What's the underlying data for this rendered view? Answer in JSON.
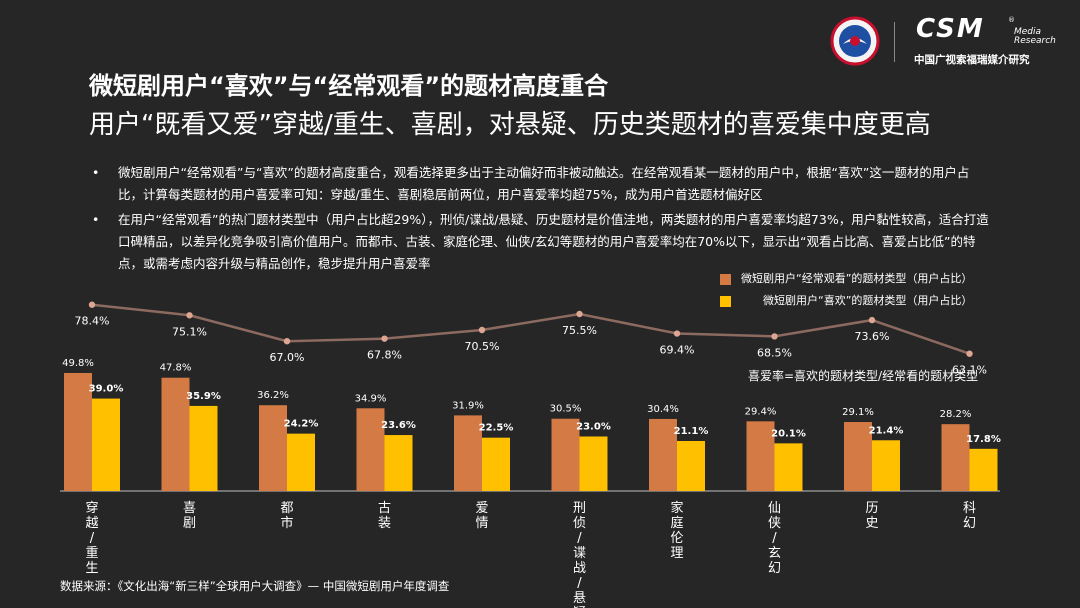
{
  "logo": {
    "brand": "CSM",
    "registered": "®",
    "sub1": "Media",
    "sub2": "Research",
    "cn": "中国广视索福瑞媒介研究"
  },
  "title": "微短剧用户“喜欢”与“经常观看”的题材高度重合",
  "subtitle": "用户“既看又爱”穿越/重生、喜剧，对悬疑、历史类题材的喜爱集中度更高",
  "bullets": [
    "微短剧用户“经常观看”与“喜欢”的题材高度重合，观看选择更多出于主动偏好而非被动触达。在经常观看某一题材的用户中，根据“喜欢”这一题材的用户占比，计算每类题材的用户喜爱率可知：穿越/重生、喜剧稳居前两位，用户喜爱率均超75%，成为用户首选题材偏好区",
    "在用户“经常观看”的热门题材类型中（用户占比超29%），刑侦/谍战/悬疑、历史题材是价值洼地，两类题材的用户喜爱率均超73%，用户黏性较高，适合打造口碑精品，以差异化竞争吸引高价值用户。而都市、古装、家庭伦理、仙侠/玄幻等题材的用户喜爱率均在70%以下，显示出“观看占比高、喜爱占比低”的特点，或需考虑内容升级与精品创作，稳步提升用户喜爱率"
  ],
  "bullet_symbol": "•",
  "formula": "喜爱率=喜欢的题材类型/经常看的题材类型",
  "source": "数据来源：《文化出海“新三样”全球用户大调查》— 中国微短剧用户年度调查",
  "colors": {
    "watch": "#D47A45",
    "like": "#FFC000",
    "line": "#8C6A5F",
    "marker": "#DCA692",
    "background": "#262626"
  },
  "chart_data": {
    "type": "bar",
    "categories": [
      "穿越/重生",
      "喜剧",
      "都市",
      "古装",
      "爱情",
      "刑侦/谍战/悬疑",
      "家庭伦理",
      "仙侠/玄幻",
      "历史",
      "科幻"
    ],
    "series": [
      {
        "name": "微短剧用户“经常观看”的题材类型（用户占比）",
        "values": [
          49.8,
          47.8,
          36.2,
          34.9,
          31.9,
          30.5,
          30.4,
          29.4,
          29.1,
          28.2
        ]
      },
      {
        "name": "微短剧用户“喜欢”的题材类型（用户占比）",
        "values": [
          39.0,
          35.9,
          24.2,
          23.6,
          22.5,
          23.0,
          21.1,
          20.1,
          21.4,
          17.8
        ]
      }
    ],
    "line": {
      "values": [
        78.4,
        75.1,
        67.0,
        67.8,
        70.5,
        75.5,
        69.4,
        68.5,
        73.6,
        63.1
      ]
    },
    "value_suffix": "%",
    "legend": "top-right",
    "grid": false
  }
}
